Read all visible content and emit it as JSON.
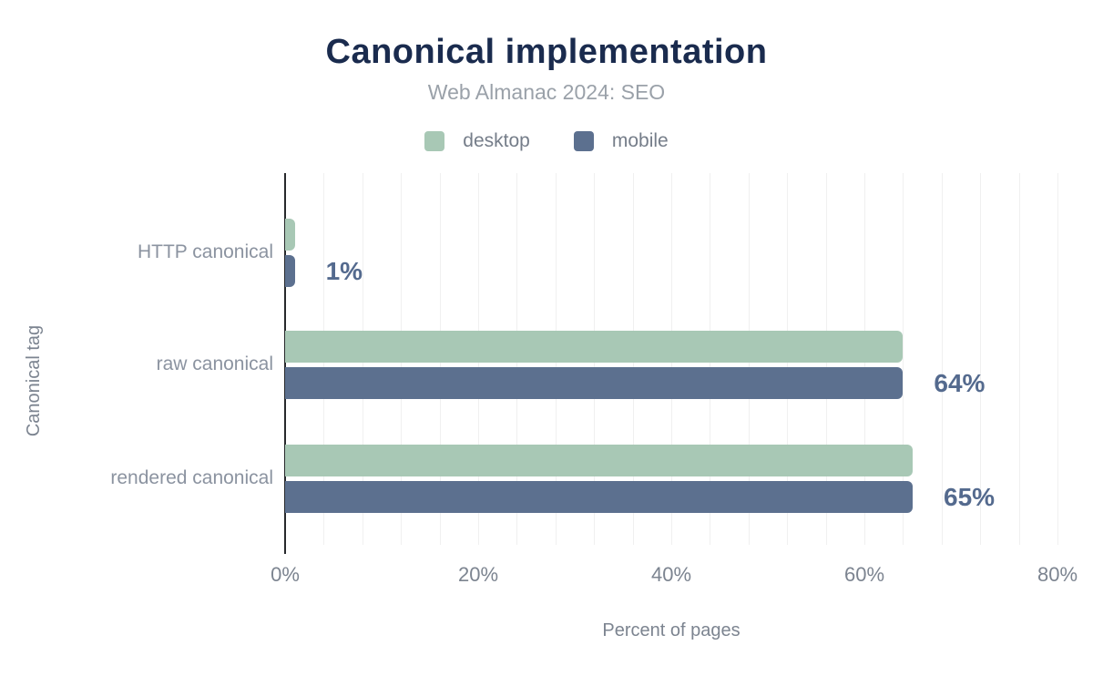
{
  "title": "Canonical implementation",
  "subtitle": "Web Almanac 2024: SEO",
  "legend": {
    "items": [
      {
        "label": "desktop",
        "color": "#a8c8b5"
      },
      {
        "label": "mobile",
        "color": "#5c708f"
      }
    ]
  },
  "chart_data": {
    "type": "bar",
    "orientation": "horizontal",
    "title": "Canonical implementation",
    "subtitle": "Web Almanac 2024: SEO",
    "categories": [
      "HTTP canonical",
      "raw canonical",
      "rendered canonical"
    ],
    "series": [
      {
        "name": "desktop",
        "color": "#a8c8b5",
        "values": [
          1,
          64,
          65
        ]
      },
      {
        "name": "mobile",
        "color": "#5c708f",
        "values": [
          1,
          64,
          65
        ]
      }
    ],
    "value_labels": [
      "1%",
      "64%",
      "65%"
    ],
    "xlabel": "Percent of pages",
    "ylabel": "Canonical tag",
    "xlim": [
      0,
      80
    ],
    "xticks": [
      0,
      20,
      40,
      60,
      80
    ],
    "xtick_labels": [
      "0%",
      "20%",
      "40%",
      "60%",
      "80%"
    ],
    "grid": "vertical minor gridlines every 4%",
    "legend_position": "top center"
  },
  "colors": {
    "title": "#1a2b4e",
    "subtitle": "#9aa1a9",
    "legend_text": "#757d89",
    "category_label": "#8b93a0",
    "value_label": "#546a8e",
    "tick_label": "#7c8490",
    "axis_line": "#27292c",
    "gridline": "#f0f0f0",
    "background": "#ffffff"
  }
}
